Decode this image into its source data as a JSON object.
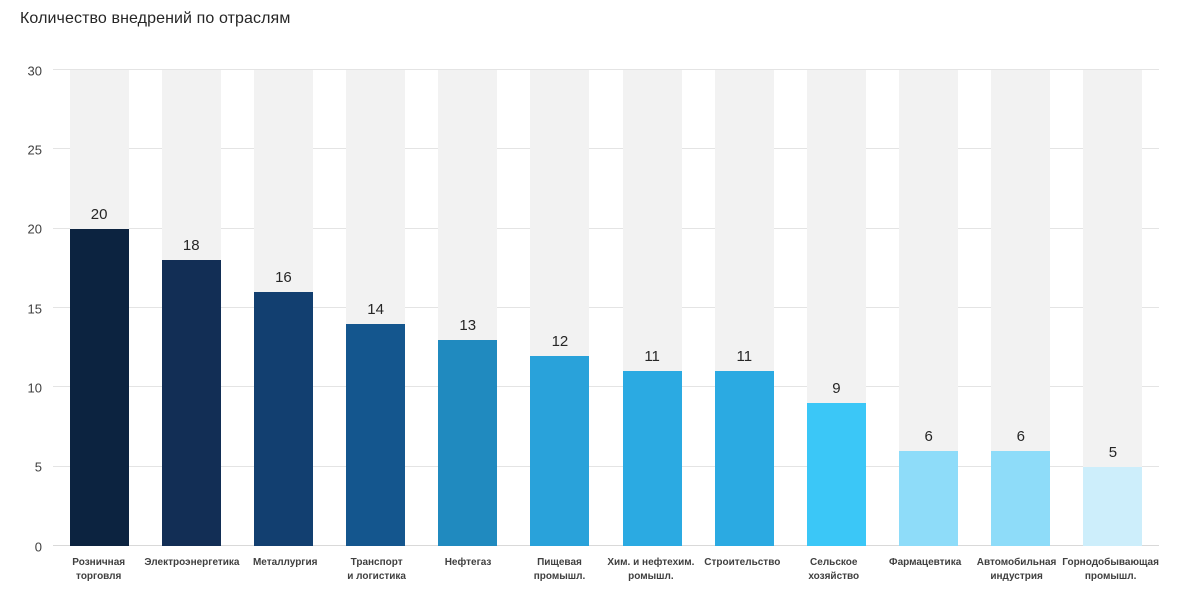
{
  "chart_data": {
    "type": "bar",
    "title": "Количество внедрений по отраслям",
    "categories": [
      "Розничная\nторговля",
      "Электроэнергетика",
      "Металлургия",
      "Транспорт\nи логистика",
      "Нефтегаз",
      "Пищевая\nпромышл.",
      "Хим. и нефтехим.\nромышл.",
      "Строительство",
      "Сельское\nхозяйство",
      "Фармацевтика",
      "Автомобильная\nиндустрия",
      "Горнодобывающая\nпромышл."
    ],
    "values": [
      20,
      18,
      16,
      14,
      13,
      12,
      11,
      11,
      9,
      6,
      6,
      5
    ],
    "bar_colors": [
      "#0c2340",
      "#122e55",
      "#123f70",
      "#14568e",
      "#208abf",
      "#29a2da",
      "#2baae2",
      "#2baae2",
      "#3bc7f7",
      "#8edcf9",
      "#8edcf9",
      "#cdeefb"
    ],
    "xlabel": "",
    "ylabel": "",
    "ylim": [
      0,
      30
    ],
    "yticks": [
      0,
      5,
      10,
      15,
      20,
      25,
      30
    ],
    "grid": "horizontal",
    "legend": "none",
    "data_labels": true,
    "stripe_color": "#f2f2f2",
    "gridline_color": "#e4e4e4",
    "text_color": "#404040",
    "value_label_color": "#262626"
  }
}
